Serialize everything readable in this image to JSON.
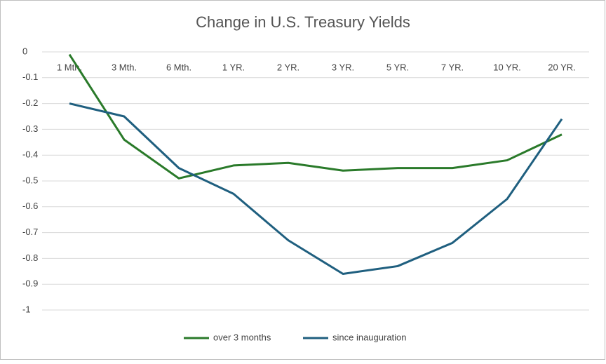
{
  "chart_data": {
    "type": "line",
    "title": "Change in U.S. Treasury Yields",
    "categories": [
      "1 Mth.",
      "3 Mth.",
      "6 Mth.",
      "1 YR.",
      "2 YR.",
      "3 YR.",
      "5 YR.",
      "7 YR.",
      "10 YR.",
      "20 YR."
    ],
    "series": [
      {
        "name": "over 3 months",
        "color": "#2a7a2a",
        "values": [
          -0.01,
          -0.34,
          -0.49,
          -0.44,
          -0.43,
          -0.46,
          -0.45,
          -0.45,
          -0.42,
          -0.32
        ]
      },
      {
        "name": "since inauguration",
        "color": "#1f5f7f",
        "values": [
          -0.2,
          -0.25,
          -0.45,
          -0.55,
          -0.73,
          -0.86,
          -0.83,
          -0.74,
          -0.57,
          -0.26
        ]
      }
    ],
    "ylim": [
      -1,
      0
    ],
    "yticks": [
      0,
      -0.1,
      -0.2,
      -0.3,
      -0.4,
      -0.5,
      -0.6,
      -0.7,
      -0.8,
      -0.9,
      -1
    ],
    "grid": true,
    "legend": "bottom"
  }
}
